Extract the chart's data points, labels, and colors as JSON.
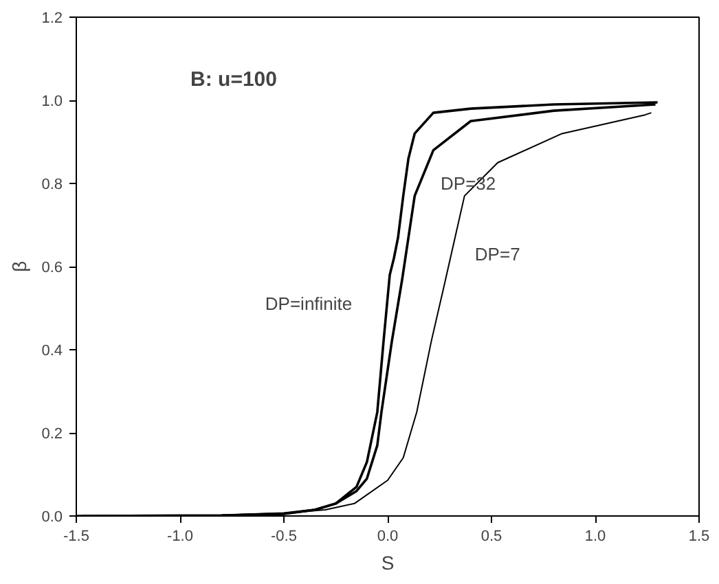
{
  "chart_data": {
    "type": "line",
    "xlabel": "S",
    "ylabel": "β",
    "grid": false,
    "marker": "none",
    "line_style": "solid",
    "xlim": [
      -1.5,
      1.5
    ],
    "ylim": [
      0,
      1.2
    ],
    "xticks": [
      {
        "value": -1.5,
        "label": "-1.5"
      },
      {
        "value": -1.0,
        "label": "-1.0"
      },
      {
        "value": -0.5,
        "label": "-0.5"
      },
      {
        "value": 0,
        "label": "0.0"
      },
      {
        "value": 0.5,
        "label": "0.5"
      },
      {
        "value": 1.0,
        "label": "1.0"
      },
      {
        "value": 1.5,
        "label": "1.5"
      }
    ],
    "yticks": [
      {
        "value": 0,
        "label": "0.0"
      },
      {
        "value": 0.2,
        "label": "0.2"
      },
      {
        "value": 0.4,
        "label": "0.4"
      },
      {
        "value": 0.6,
        "label": "0.6"
      },
      {
        "value": 0.8,
        "label": "0.8"
      },
      {
        "value": 1.0,
        "label": "1.0"
      },
      {
        "value": 1.2,
        "label": "1.2"
      }
    ],
    "series": [
      {
        "color": "#000000",
        "x": [
          -1.5,
          -0.8,
          -0.5,
          -0.35,
          -0.25,
          -0.15,
          -0.1,
          -0.05,
          -0.02,
          0.01,
          0.03,
          0.05,
          0.075,
          0.1,
          0.13,
          0.22,
          0.4,
          0.8,
          1.3
        ],
        "values": [
          0,
          0.001,
          0.005,
          0.015,
          0.03,
          0.07,
          0.13,
          0.25,
          0.42,
          0.58,
          0.62,
          0.67,
          0.77,
          0.86,
          0.92,
          0.97,
          0.98,
          0.99,
          0.995
        ]
      },
      {
        "color": "#000000",
        "x": [
          -1.47,
          -0.8,
          -0.5,
          -0.35,
          -0.25,
          -0.15,
          -0.1,
          -0.05,
          -0.03,
          0.02,
          0.07,
          0.13,
          0.22,
          0.4,
          0.8,
          1.29
        ],
        "values": [
          0,
          0.001,
          0.006,
          0.015,
          0.03,
          0.06,
          0.09,
          0.17,
          0.25,
          0.42,
          0.57,
          0.77,
          0.88,
          0.95,
          0.975,
          0.99
        ]
      },
      {
        "color": "#000000",
        "x": [
          -1.44,
          -0.8,
          -0.5,
          -0.3,
          -0.16,
          0,
          0.075,
          0.14,
          0.21,
          0.27,
          0.32,
          0.37,
          0.53,
          0.84,
          1.24,
          1.27
        ],
        "values": [
          0,
          0.002,
          0.007,
          0.015,
          0.03,
          0.086,
          0.14,
          0.25,
          0.42,
          0.55,
          0.66,
          0.77,
          0.85,
          0.92,
          0.965,
          0.97
        ]
      }
    ],
    "annotations": [
      "B:  u=100",
      "DP=32",
      "DP=7",
      "DP=infinite"
    ]
  }
}
